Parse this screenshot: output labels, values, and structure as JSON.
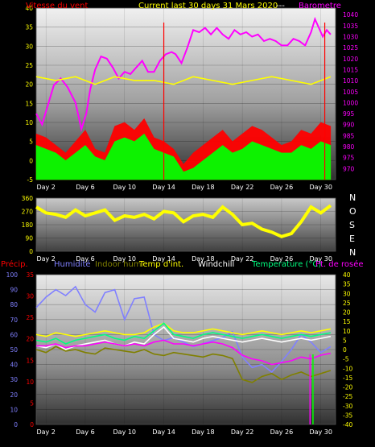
{
  "chart_data": [
    {
      "type": "line",
      "labels": {
        "wind": "Vitesse du vent",
        "title": "Current last 30 days 31 Mars 2020",
        "dash": "---",
        "baro": "Barometre"
      },
      "x_ticks": [
        "Day 2",
        "Day 6",
        "Day 10",
        "Day 14",
        "Day 18",
        "Day 22",
        "Day 26",
        "Day 30"
      ],
      "left_axis": {
        "ylim": [
          -5,
          40
        ],
        "ticks": [
          "-5",
          "0",
          "5",
          "10",
          "15",
          "20",
          "25",
          "30",
          "35",
          "40"
        ]
      },
      "right_axis": {
        "ylim": [
          965,
          1043
        ],
        "ticks": [
          "970",
          "975",
          "980",
          "985",
          "990",
          "995",
          "1000",
          "1005",
          "1010",
          "1015",
          "1020",
          "1025",
          "1030",
          "1035",
          "1040"
        ]
      },
      "series": [
        {
          "key": "barometer",
          "color": "#ff00ff",
          "axis": "right",
          "x": [
            1,
            1.6,
            2.2,
            2.8,
            3.5,
            4.2,
            5.0,
            5.6,
            6.1,
            6.5,
            7.0,
            7.6,
            8.2,
            8.8,
            9.4,
            10.0,
            10.6,
            11.2,
            11.8,
            12.4,
            13.0,
            13.6,
            14.2,
            14.8,
            15.2,
            15.8,
            16.4,
            17.0,
            17.6,
            18.2,
            18.8,
            19.4,
            20.0,
            20.6,
            21.2,
            21.8,
            22.4,
            23.0,
            23.6,
            24.2,
            24.8,
            25.4,
            26.0,
            26.6,
            27.2,
            27.8,
            28.4,
            29.0,
            29.4,
            29.8,
            30.2,
            30.6,
            31.0
          ],
          "values": [
            995,
            990,
            999,
            1008,
            1011,
            1007,
            1000,
            988,
            995,
            1006,
            1015,
            1021,
            1020,
            1016,
            1011,
            1014,
            1013,
            1016,
            1019,
            1014,
            1014,
            1019,
            1022,
            1023,
            1022,
            1018,
            1025,
            1033,
            1032,
            1034,
            1031,
            1034,
            1031,
            1029,
            1033,
            1031,
            1032,
            1030,
            1031,
            1028,
            1029,
            1028,
            1026,
            1026,
            1029,
            1028,
            1026,
            1032,
            1038,
            1034,
            1030,
            1033,
            1031
          ]
        },
        {
          "key": "wind_high",
          "color": "#ff0000",
          "axis": "left",
          "x": [
            1,
            2,
            3,
            4,
            5,
            6,
            7,
            8,
            9,
            10,
            11,
            12,
            13,
            14,
            15,
            16,
            17,
            18,
            19,
            20,
            21,
            22,
            23,
            24,
            25,
            26,
            27,
            28,
            29,
            30,
            31
          ],
          "values": [
            7,
            6,
            4,
            2,
            5,
            8,
            3,
            2,
            9,
            10,
            8,
            11,
            6,
            5,
            3,
            -1,
            2,
            4,
            6,
            8,
            5,
            7,
            9,
            8,
            6,
            4,
            5,
            8,
            7,
            10,
            9
          ]
        },
        {
          "key": "wind_avg",
          "color": "#00ff00",
          "axis": "left",
          "x": [
            1,
            2,
            3,
            4,
            5,
            6,
            7,
            8,
            9,
            10,
            11,
            12,
            13,
            14,
            15,
            16,
            17,
            18,
            19,
            20,
            21,
            22,
            23,
            24,
            25,
            26,
            27,
            28,
            29,
            30,
            31
          ],
          "values": [
            4,
            3,
            2,
            0,
            2,
            4,
            1,
            0,
            5,
            6,
            5,
            7,
            3,
            2,
            1,
            -3,
            -2,
            0,
            2,
            4,
            2,
            3,
            5,
            4,
            3,
            2,
            2,
            4,
            3,
            5,
            4
          ]
        },
        {
          "key": "wind_dir_mark",
          "color": "#ffff00",
          "axis": "left",
          "x": [
            1,
            3,
            5,
            7,
            9,
            11,
            13,
            15,
            17,
            19,
            21,
            23,
            25,
            27,
            29,
            31
          ],
          "values": [
            22,
            21,
            22,
            20,
            22,
            21,
            21,
            20,
            22,
            21,
            20,
            21,
            22,
            21,
            20,
            22
          ]
        }
      ],
      "spikes": [
        {
          "x": 14,
          "color": "#ff0000"
        },
        {
          "x": 30.4,
          "color": "#ff0000"
        }
      ]
    },
    {
      "type": "line",
      "labels": {
        "directions": [
          "N",
          "O",
          "S",
          "E",
          "N"
        ]
      },
      "x_ticks": [
        "Day 2",
        "Day 6",
        "Day 10",
        "Day 14",
        "Day 18",
        "Day 22",
        "Day 26",
        "Day 30"
      ],
      "left_axis": {
        "ylim": [
          0,
          360
        ],
        "ticks": [
          "0",
          "90",
          "180",
          "270",
          "360"
        ]
      },
      "series": [
        {
          "key": "wind_direction",
          "color": "#ffff00",
          "x": [
            1,
            2,
            3,
            4,
            5,
            6,
            7,
            8,
            9,
            10,
            11,
            12,
            13,
            14,
            15,
            16,
            17,
            18,
            19,
            20,
            21,
            22,
            23,
            24,
            25,
            26,
            27,
            28,
            29,
            30,
            31
          ],
          "values": [
            300,
            260,
            250,
            230,
            280,
            240,
            260,
            280,
            210,
            240,
            230,
            250,
            220,
            270,
            260,
            200,
            240,
            250,
            230,
            300,
            250,
            180,
            190,
            150,
            130,
            100,
            120,
            200,
            300,
            260,
            310
          ]
        }
      ]
    },
    {
      "type": "line",
      "labels": {
        "precip": "Précip.",
        "humidity": "Humidité",
        "indoor_hum": "Indoor hum",
        "temp_int": "Temp d'int.",
        "windchill": "Windchill",
        "temperature": "Temperature (°C)",
        "dew": "Pt. de rosée"
      },
      "x_ticks": [
        "Day 2",
        "Day 6",
        "Day 10",
        "Day 14",
        "Day 18",
        "Day 22",
        "Day 26",
        "Day 30"
      ],
      "left_axis": {
        "ylim": [
          0,
          100
        ],
        "ticks": [
          "0",
          "10",
          "20",
          "30",
          "40",
          "50",
          "60",
          "70",
          "80",
          "90",
          "100"
        ]
      },
      "precip_axis": {
        "ylim": [
          0,
          35
        ],
        "ticks": [
          "0",
          "5",
          "10",
          "15",
          "20",
          "25",
          "30",
          "35"
        ]
      },
      "right_axis": {
        "ylim": [
          -40,
          40
        ],
        "ticks": [
          "-40",
          "-35",
          "-30",
          "-25",
          "-20",
          "-15",
          "-10",
          "-5",
          "0",
          "5",
          "10",
          "15",
          "20",
          "25",
          "30",
          "35",
          "40"
        ]
      },
      "series": [
        {
          "key": "humidity",
          "color": "#8080ff",
          "axis": "left",
          "x": [
            1,
            2,
            3,
            4,
            5,
            6,
            7,
            8,
            9,
            10,
            11,
            12,
            13,
            14,
            15,
            16,
            17,
            18,
            19,
            20,
            21,
            22,
            23,
            24,
            25,
            26,
            27,
            28,
            29,
            30,
            31
          ],
          "values": [
            78,
            85,
            90,
            86,
            92,
            80,
            75,
            88,
            90,
            70,
            84,
            85,
            60,
            56,
            58,
            55,
            52,
            54,
            56,
            58,
            62,
            45,
            38,
            40,
            35,
            42,
            50,
            60,
            55,
            48,
            52
          ]
        },
        {
          "key": "indoor_humidity",
          "color": "#808000",
          "axis": "left",
          "x": [
            1,
            2,
            3,
            4,
            5,
            6,
            7,
            8,
            9,
            10,
            11,
            12,
            13,
            14,
            15,
            16,
            17,
            18,
            19,
            20,
            21,
            22,
            23,
            24,
            25,
            26,
            27,
            28,
            29,
            30,
            31
          ],
          "values": [
            50,
            48,
            52,
            49,
            50,
            48,
            47,
            51,
            50,
            49,
            48,
            50,
            47,
            46,
            48,
            47,
            46,
            45,
            47,
            46,
            44,
            30,
            28,
            32,
            34,
            30,
            33,
            35,
            32,
            34,
            36
          ]
        },
        {
          "key": "temp_int",
          "color": "#ffff00",
          "axis": "right",
          "x": [
            1,
            2,
            3,
            4,
            5,
            6,
            7,
            8,
            9,
            10,
            11,
            12,
            13,
            14,
            15,
            16,
            17,
            18,
            19,
            20,
            21,
            22,
            23,
            24,
            25,
            26,
            27,
            28,
            29,
            30,
            31
          ],
          "values": [
            8,
            7,
            9,
            8,
            7,
            8,
            9,
            10,
            9,
            8,
            8,
            9,
            12,
            14,
            10,
            9,
            9,
            10,
            11,
            10,
            9,
            8,
            9,
            10,
            9,
            8,
            9,
            10,
            9,
            10,
            11
          ]
        },
        {
          "key": "windchill",
          "color": "#ffffff",
          "axis": "right",
          "x": [
            1,
            2,
            3,
            4,
            5,
            6,
            7,
            8,
            9,
            10,
            11,
            12,
            13,
            14,
            15,
            16,
            17,
            18,
            19,
            20,
            21,
            22,
            23,
            24,
            25,
            26,
            27,
            28,
            29,
            30,
            31
          ],
          "values": [
            2,
            1,
            3,
            0,
            2,
            3,
            4,
            5,
            3,
            2,
            4,
            3,
            8,
            12,
            6,
            5,
            4,
            6,
            7,
            6,
            5,
            4,
            5,
            6,
            5,
            4,
            5,
            6,
            5,
            6,
            7
          ]
        },
        {
          "key": "temperature",
          "color": "#00ff80",
          "axis": "right",
          "x": [
            1,
            2,
            3,
            4,
            5,
            6,
            7,
            8,
            9,
            10,
            11,
            12,
            13,
            14,
            15,
            16,
            17,
            18,
            19,
            20,
            21,
            22,
            23,
            24,
            25,
            26,
            27,
            28,
            29,
            30,
            31
          ],
          "values": [
            5,
            4,
            6,
            3,
            5,
            6,
            7,
            8,
            6,
            5,
            7,
            6,
            10,
            14,
            8,
            7,
            6,
            8,
            9,
            8,
            7,
            6,
            7,
            8,
            7,
            6,
            7,
            8,
            7,
            8,
            9
          ]
        },
        {
          "key": "dew_point",
          "color": "#ff00ff",
          "axis": "right",
          "x": [
            1,
            2,
            3,
            4,
            5,
            6,
            7,
            8,
            9,
            10,
            11,
            12,
            13,
            14,
            15,
            16,
            17,
            18,
            19,
            20,
            21,
            22,
            23,
            24,
            25,
            26,
            27,
            28,
            29,
            30,
            31
          ],
          "values": [
            2,
            2,
            3,
            1,
            2,
            2,
            3,
            4,
            3,
            2,
            3,
            2,
            4,
            5,
            3,
            3,
            2,
            3,
            4,
            3,
            1,
            -3,
            -5,
            -6,
            -8,
            -7,
            -6,
            -4,
            -5,
            -3,
            -2
          ]
        }
      ],
      "spikes": [
        {
          "x": 29.2,
          "color": "#00ff00"
        },
        {
          "x": 28.9,
          "color": "#ff00ff"
        }
      ]
    }
  ]
}
